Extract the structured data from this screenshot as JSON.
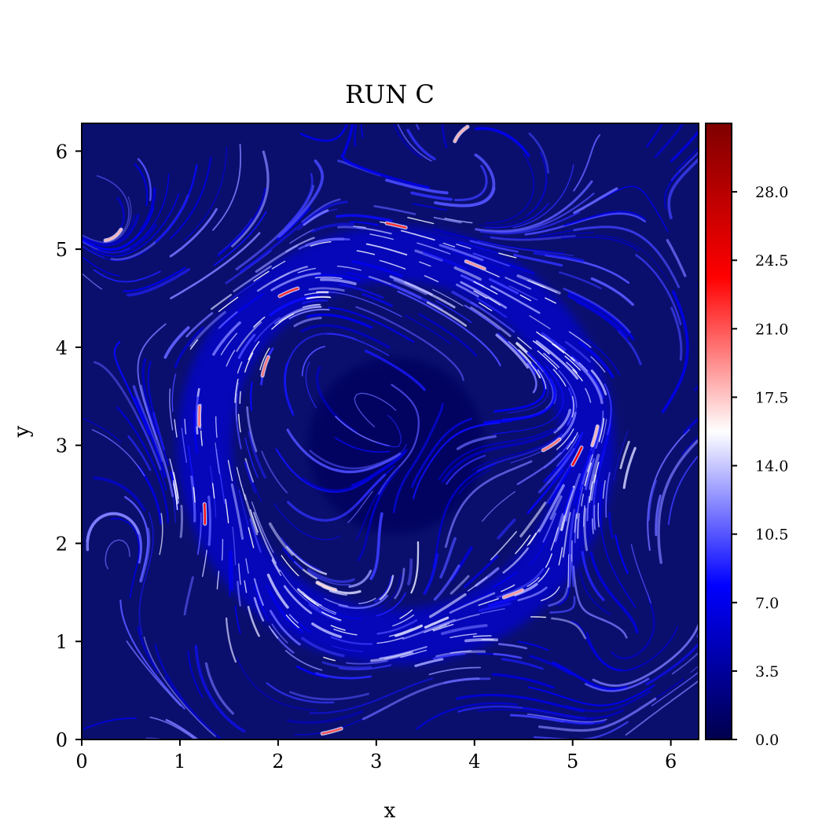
{
  "chart_data": {
    "type": "heatmap",
    "title": "RUN C",
    "xlabel": "x",
    "ylabel": "y",
    "xlim": [
      0,
      6.283
    ],
    "ylim": [
      0,
      6.283
    ],
    "xticks": [
      0,
      1,
      2,
      3,
      4,
      5,
      6
    ],
    "yticks": [
      0,
      1,
      2,
      3,
      4,
      5,
      6
    ],
    "colorbar": {
      "range": [
        0,
        31.5
      ],
      "ticks": [
        "0.0",
        "3.5",
        "7.0",
        "10.5",
        "14.0",
        "17.5",
        "21.0",
        "24.5",
        "28.0"
      ],
      "colormap": "seismic",
      "colors": [
        "#00004c",
        "#0000ff",
        "#ffffff",
        "#ff0000",
        "#7f0000"
      ]
    },
    "background_color": "#0a0f6e",
    "structure": {
      "description_free": true,
      "ring_center": [
        3.2,
        3.0
      ],
      "ring_radius": 1.95,
      "hotspots": [
        {
          "x": 2.2,
          "y": 4.6,
          "value": 22
        },
        {
          "x": 1.2,
          "y": 3.4,
          "value": 20
        },
        {
          "x": 1.25,
          "y": 2.4,
          "value": 23
        },
        {
          "x": 5.0,
          "y": 2.8,
          "value": 24
        },
        {
          "x": 4.7,
          "y": 2.95,
          "value": 20
        },
        {
          "x": 3.3,
          "y": 5.22,
          "value": 22
        },
        {
          "x": 4.1,
          "y": 4.8,
          "value": 19
        },
        {
          "x": 1.9,
          "y": 3.9,
          "value": 20
        },
        {
          "x": 2.45,
          "y": 0.06,
          "value": 21
        },
        {
          "x": 0.4,
          "y": 5.2,
          "value": 18
        },
        {
          "x": 4.3,
          "y": 1.45,
          "value": 19
        },
        {
          "x": 3.8,
          "y": 6.1,
          "value": 18
        },
        {
          "x": 2.4,
          "y": 1.6,
          "value": 17
        },
        {
          "x": 5.2,
          "y": 3.0,
          "value": 18
        }
      ]
    }
  }
}
